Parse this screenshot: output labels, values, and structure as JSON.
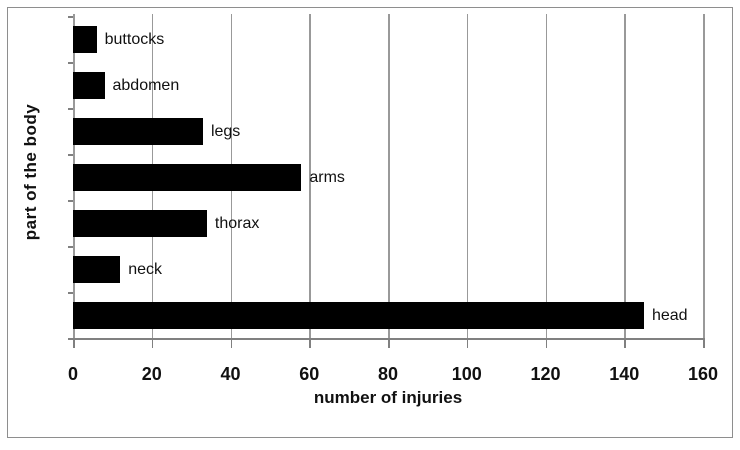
{
  "figure": {
    "background": "#ffffff",
    "border_color": "#8e8e8e"
  },
  "chart_data": {
    "type": "bar",
    "orientation": "horizontal",
    "title": "",
    "xlabel": "number of injuries",
    "ylabel": "part of the body",
    "categories": [
      "buttocks",
      "abdomen",
      "legs",
      "arms",
      "thorax",
      "neck",
      "head"
    ],
    "values": [
      6,
      8,
      33,
      58,
      34,
      12,
      145
    ],
    "xlim": [
      0,
      160
    ],
    "xticks": [
      0,
      20,
      40,
      60,
      80,
      100,
      120,
      140,
      160
    ],
    "grid": "vertical",
    "legend": "none",
    "bar_labels": "category name shown at end of each bar",
    "bar_color": "#000000",
    "gridline_color": "#999999",
    "axis_color": "#808080",
    "text_color": "#111111"
  }
}
